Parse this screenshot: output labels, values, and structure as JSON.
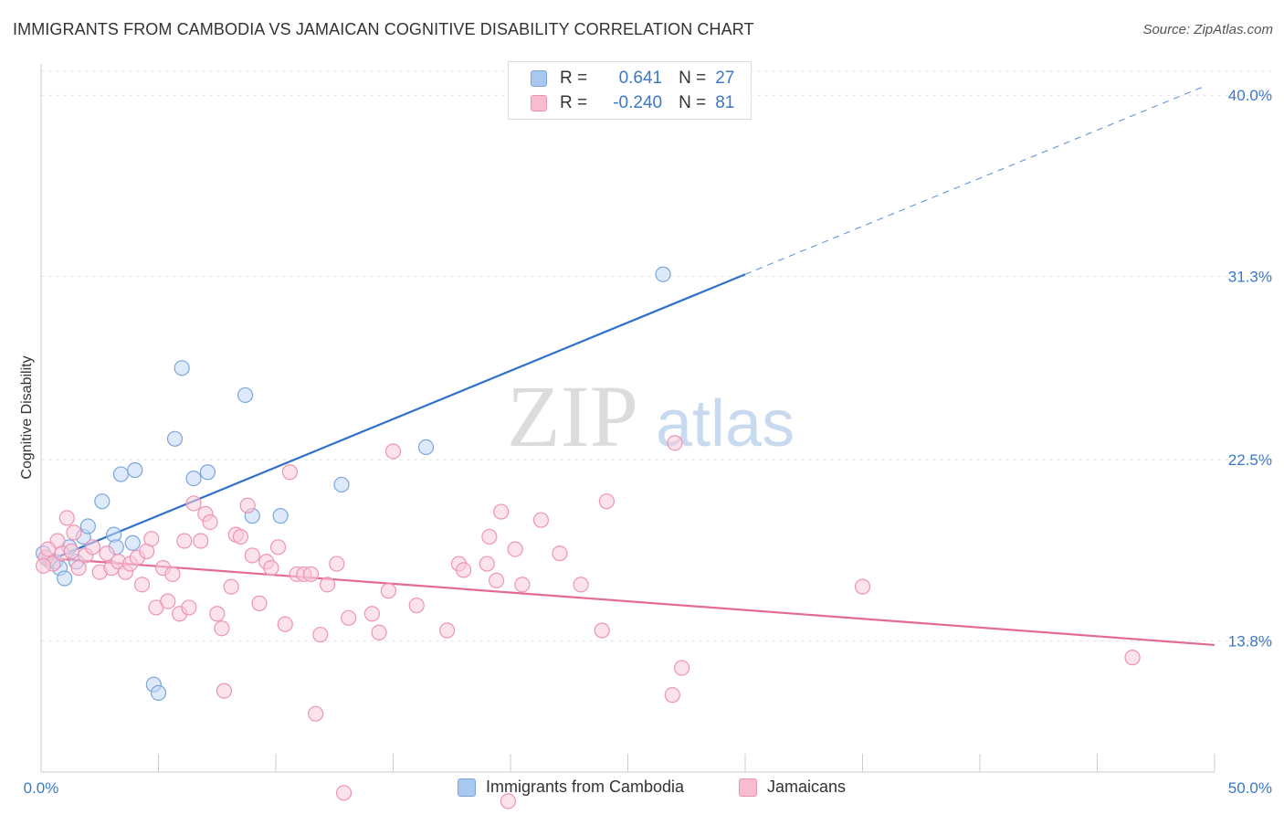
{
  "title": "IMMIGRANTS FROM CAMBODIA VS JAMAICAN COGNITIVE DISABILITY CORRELATION CHART",
  "source": "Source: ZipAtlas.com",
  "watermark": {
    "zip": "ZIP",
    "atlas": "atlas"
  },
  "legend": {
    "rows": [
      {
        "r_label": "R =",
        "r_value": " 0.641",
        "n_label": "N =",
        "n_value": "27",
        "color": "#a8c8f0",
        "border": "#7aa6de"
      },
      {
        "r_label": "R =",
        "r_value": "-0.240",
        "n_label": "N =",
        "n_value": "81",
        "color": "#f7bcd0",
        "border": "#ee94b3"
      }
    ]
  },
  "bottom_legend": [
    "Immigrants from Cambodia",
    "Jamaicans"
  ],
  "chart_data": {
    "type": "scatter",
    "xlabel": "",
    "ylabel": "Cognitive Disability",
    "xlim": [
      0,
      50
    ],
    "ylim": [
      7.5,
      41.5
    ],
    "x_tick_labels": [
      "0.0%",
      "50.0%"
    ],
    "y_ticks": [
      13.8,
      22.5,
      31.3,
      40.0
    ],
    "y_tick_labels": [
      "13.8%",
      "22.5%",
      "31.3%",
      "40.0%"
    ],
    "grid": true,
    "series": [
      {
        "name": "Immigrants from Cambodia",
        "color": "#7aa6de",
        "fill": "#c3d8f4",
        "line_color": "#2f70cc",
        "trend": {
          "x0": 0,
          "y0": 17.5,
          "x1": 30,
          "y1": 31.4,
          "dash_to_x": 49.5,
          "dash_to_y": 40.4
        },
        "points": [
          [
            0.3,
            17.7
          ],
          [
            0.6,
            17.6
          ],
          [
            0.8,
            17.3
          ],
          [
            1.0,
            16.8
          ],
          [
            1.2,
            18.3
          ],
          [
            1.5,
            17.6
          ],
          [
            1.8,
            18.8
          ],
          [
            2.0,
            19.3
          ],
          [
            2.6,
            20.5
          ],
          [
            3.1,
            18.9
          ],
          [
            3.2,
            18.3
          ],
          [
            3.4,
            21.8
          ],
          [
            3.9,
            18.5
          ],
          [
            4.0,
            22.0
          ],
          [
            4.8,
            11.7
          ],
          [
            5.0,
            11.3
          ],
          [
            5.7,
            23.5
          ],
          [
            6.0,
            26.9
          ],
          [
            6.5,
            21.6
          ],
          [
            7.1,
            21.9
          ],
          [
            8.7,
            25.6
          ],
          [
            9.0,
            19.8
          ],
          [
            10.2,
            19.8
          ],
          [
            12.8,
            21.3
          ],
          [
            16.4,
            23.1
          ],
          [
            26.5,
            31.4
          ],
          [
            0.1,
            18.0
          ]
        ]
      },
      {
        "name": "Jamaicans",
        "color": "#ee94b3",
        "fill": "#f9cadb",
        "line_color": "#e36a97",
        "trend": {
          "x0": 0,
          "y0": 17.8,
          "x1": 50,
          "y1": 13.6
        },
        "points": [
          [
            0.2,
            17.8
          ],
          [
            0.5,
            17.5
          ],
          [
            0.7,
            18.6
          ],
          [
            0.9,
            18.0
          ],
          [
            1.1,
            19.7
          ],
          [
            1.3,
            18.1
          ],
          [
            1.6,
            17.3
          ],
          [
            1.9,
            17.9
          ],
          [
            2.2,
            18.3
          ],
          [
            2.5,
            17.1
          ],
          [
            2.8,
            18.0
          ],
          [
            3.0,
            17.3
          ],
          [
            3.3,
            17.6
          ],
          [
            3.6,
            17.1
          ],
          [
            3.8,
            17.5
          ],
          [
            4.1,
            17.8
          ],
          [
            4.3,
            16.5
          ],
          [
            4.5,
            18.1
          ],
          [
            4.7,
            18.7
          ],
          [
            4.9,
            15.4
          ],
          [
            5.2,
            17.3
          ],
          [
            5.4,
            15.7
          ],
          [
            5.6,
            17.0
          ],
          [
            5.9,
            15.1
          ],
          [
            6.1,
            18.6
          ],
          [
            6.3,
            15.4
          ],
          [
            6.5,
            20.4
          ],
          [
            6.8,
            18.6
          ],
          [
            7.0,
            19.9
          ],
          [
            7.2,
            19.5
          ],
          [
            7.5,
            15.1
          ],
          [
            7.7,
            14.4
          ],
          [
            7.8,
            11.4
          ],
          [
            8.1,
            16.4
          ],
          [
            8.3,
            18.9
          ],
          [
            8.5,
            18.8
          ],
          [
            8.8,
            20.3
          ],
          [
            9.0,
            17.9
          ],
          [
            9.3,
            15.6
          ],
          [
            9.6,
            17.6
          ],
          [
            9.8,
            17.3
          ],
          [
            10.1,
            18.3
          ],
          [
            10.4,
            14.6
          ],
          [
            10.6,
            21.9
          ],
          [
            10.9,
            17.0
          ],
          [
            11.2,
            17.0
          ],
          [
            11.5,
            17.0
          ],
          [
            11.7,
            10.3
          ],
          [
            11.9,
            14.1
          ],
          [
            12.2,
            16.5
          ],
          [
            12.6,
            17.5
          ],
          [
            12.9,
            6.5
          ],
          [
            13.1,
            14.9
          ],
          [
            14.1,
            15.1
          ],
          [
            14.4,
            14.2
          ],
          [
            14.8,
            16.2
          ],
          [
            15.0,
            22.9
          ],
          [
            16.0,
            15.5
          ],
          [
            17.3,
            14.3
          ],
          [
            17.8,
            17.5
          ],
          [
            18.0,
            17.2
          ],
          [
            19.0,
            17.5
          ],
          [
            19.1,
            18.8
          ],
          [
            19.4,
            16.7
          ],
          [
            19.6,
            20.0
          ],
          [
            19.9,
            6.1
          ],
          [
            20.2,
            18.2
          ],
          [
            20.5,
            16.5
          ],
          [
            21.3,
            19.6
          ],
          [
            23.0,
            16.5
          ],
          [
            23.9,
            14.3
          ],
          [
            24.1,
            20.5
          ],
          [
            27.0,
            23.3
          ],
          [
            26.9,
            11.2
          ],
          [
            27.3,
            12.5
          ],
          [
            35.0,
            16.4
          ],
          [
            46.5,
            13.0
          ],
          [
            0.1,
            17.4
          ],
          [
            0.3,
            18.2
          ],
          [
            1.4,
            19.0
          ],
          [
            22.1,
            18.0
          ]
        ]
      }
    ]
  }
}
